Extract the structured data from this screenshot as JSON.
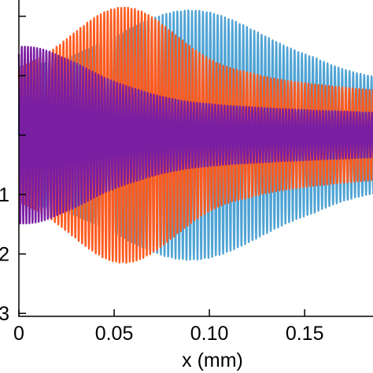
{
  "chart_data": {
    "type": "line",
    "title": "",
    "xlabel": "x (mm)",
    "ylabel": "",
    "xlim": [
      0,
      0.19
    ],
    "ylim": [
      -3.05,
      2.3
    ],
    "x_ticks": [
      {
        "value": 0,
        "label": "0"
      },
      {
        "value": 0.05,
        "label": "0.05"
      },
      {
        "value": 0.1,
        "label": "0.10"
      },
      {
        "value": 0.15,
        "label": "0.15"
      }
    ],
    "y_ticks": [
      {
        "value": -1,
        "label": "1"
      },
      {
        "value": -2,
        "label": "2"
      },
      {
        "value": -3,
        "label": "3"
      }
    ],
    "y_minor_ticks": [
      2,
      1,
      0
    ],
    "grid": false,
    "legend": "none",
    "series": [
      {
        "color": "#4fa3d4",
        "baseline": 0,
        "envelope_peak": 2.1,
        "envelope_center_x": 0.09,
        "envelope_width_x": 0.052,
        "envelope_edge": 1.1,
        "cycles_per_mm": 520
      },
      {
        "color": "#ff5b1f",
        "baseline": 0,
        "envelope_peak": 2.15,
        "envelope_center_x": 0.055,
        "envelope_width_x": 0.038,
        "envelope_edge": 1.0,
        "cycles_per_mm": 560
      },
      {
        "color": "#7b1fa2",
        "baseline": 0,
        "envelope_peak": 1.5,
        "envelope_center_x": 0.0,
        "envelope_width_x": 0.048,
        "envelope_edge": 0.6,
        "cycles_per_mm": 620
      }
    ]
  }
}
